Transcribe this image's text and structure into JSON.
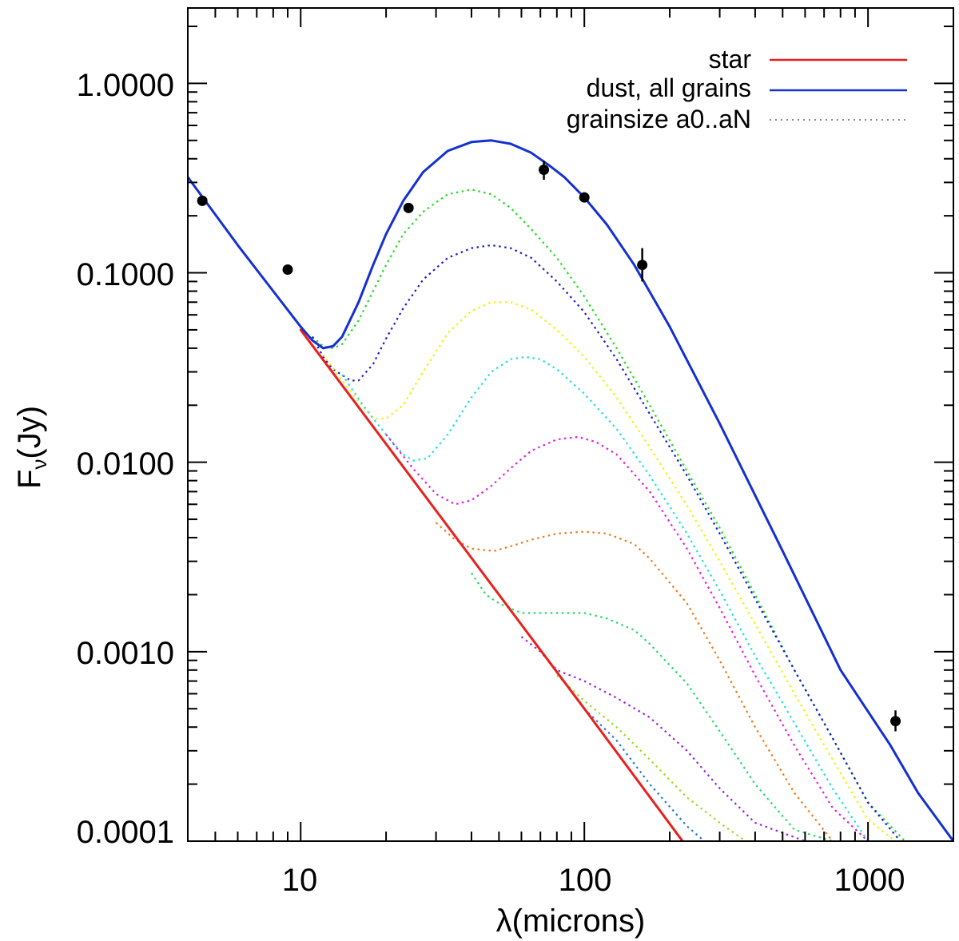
{
  "chart_data": {
    "type": "line",
    "xlabel": "λ(microns)",
    "ylabel": "F_ν(Jy)",
    "ylabel_main": "F",
    "ylabel_sub": "ν",
    "ylabel_tail": "(Jy)",
    "xscale": "log",
    "yscale": "log",
    "xlim": [
      4,
      2000
    ],
    "ylim": [
      0.0001,
      2.5
    ],
    "x_tick_labels": [
      "10",
      "100",
      "1000"
    ],
    "y_tick_labels": [
      "1.0000",
      "0.1000",
      "0.0100",
      "0.0010",
      "0.0001"
    ],
    "legend": {
      "placement": "top-right",
      "entries": [
        {
          "label": "star",
          "color": "#e8201c",
          "style": "solid"
        },
        {
          "label": "dust, all grains",
          "color": "#1530d0",
          "style": "solid"
        },
        {
          "label": "grainsize a0..aN",
          "color": "#888888",
          "style": "dotted"
        }
      ]
    },
    "series": [
      {
        "name": "star",
        "color": "#e8201c",
        "style": "solid",
        "x": [
          10,
          100,
          222
        ],
        "y": [
          0.05,
          0.0005,
          0.0001
        ]
      },
      {
        "name": "dust, all grains",
        "color": "#1530d0",
        "style": "solid",
        "x": [
          4,
          6,
          8,
          10,
          11,
          12,
          13,
          14,
          16,
          18,
          20,
          23,
          27,
          33,
          40,
          47,
          55,
          65,
          75,
          85,
          100,
          120,
          150,
          200,
          300,
          500,
          800,
          1200,
          1500,
          2000
        ],
        "y": [
          0.32,
          0.14,
          0.08,
          0.052,
          0.044,
          0.04,
          0.041,
          0.046,
          0.07,
          0.11,
          0.16,
          0.24,
          0.34,
          0.44,
          0.49,
          0.5,
          0.48,
          0.43,
          0.37,
          0.32,
          0.25,
          0.18,
          0.11,
          0.052,
          0.016,
          0.0034,
          0.0008,
          0.00032,
          0.00018,
          0.0001
        ]
      },
      {
        "name": "grainsize 1",
        "color": "#22dd22",
        "style": "dotted",
        "x": [
          11,
          12,
          13,
          14,
          16,
          18,
          20,
          23,
          27,
          33,
          40,
          47,
          55,
          65,
          80,
          100,
          130,
          170,
          230,
          300,
          400,
          550,
          750,
          1000,
          1350
        ],
        "y": [
          0.046,
          0.041,
          0.04,
          0.042,
          0.056,
          0.08,
          0.11,
          0.16,
          0.21,
          0.26,
          0.275,
          0.26,
          0.22,
          0.17,
          0.12,
          0.075,
          0.04,
          0.02,
          0.009,
          0.0045,
          0.002,
          0.0008,
          0.00035,
          0.00016,
          0.0001
        ]
      },
      {
        "name": "grainsize 2",
        "color": "#1a1ad0",
        "style": "dotted",
        "x": [
          11,
          12,
          13,
          15,
          16,
          18,
          20,
          23,
          27,
          33,
          40,
          47,
          55,
          65,
          80,
          100,
          130,
          170,
          230,
          300,
          400,
          550,
          750,
          1000,
          1300
        ],
        "y": [
          0.046,
          0.036,
          0.031,
          0.027,
          0.027,
          0.033,
          0.045,
          0.065,
          0.092,
          0.12,
          0.135,
          0.14,
          0.135,
          0.12,
          0.09,
          0.062,
          0.035,
          0.018,
          0.0085,
          0.0042,
          0.0019,
          0.0008,
          0.00035,
          0.00016,
          0.0001
        ]
      },
      {
        "name": "grainsize 3",
        "color": "#f2f20a",
        "style": "dotted",
        "x": [
          12,
          14,
          16,
          18,
          20,
          23,
          27,
          33,
          40,
          47,
          55,
          65,
          80,
          100,
          130,
          170,
          230,
          300,
          400,
          550,
          750,
          1000,
          1250
        ],
        "y": [
          0.037,
          0.027,
          0.021,
          0.017,
          0.017,
          0.02,
          0.03,
          0.048,
          0.063,
          0.07,
          0.07,
          0.064,
          0.05,
          0.036,
          0.022,
          0.012,
          0.0059,
          0.003,
          0.0014,
          0.0006,
          0.00027,
          0.00013,
          0.0001
        ]
      },
      {
        "name": "grainsize 4",
        "color": "#22e0e0",
        "style": "dotted",
        "x": [
          14,
          17,
          20,
          23,
          25,
          28,
          33,
          40,
          47,
          55,
          62,
          70,
          80,
          100,
          130,
          170,
          230,
          300,
          400,
          550,
          750,
          1000,
          1200
        ],
        "y": [
          0.029,
          0.019,
          0.014,
          0.011,
          0.0102,
          0.0105,
          0.014,
          0.022,
          0.03,
          0.035,
          0.036,
          0.035,
          0.031,
          0.023,
          0.015,
          0.0085,
          0.0042,
          0.0021,
          0.00095,
          0.00042,
          0.00019,
          0.0001,
          7.5e-05
        ]
      },
      {
        "name": "grainsize 5",
        "color": "#e020e0",
        "style": "dotted",
        "x": [
          20,
          25,
          30,
          35,
          40,
          47,
          55,
          65,
          80,
          95,
          110,
          130,
          170,
          230,
          300,
          400,
          550,
          750,
          1000,
          1150
        ],
        "y": [
          0.014,
          0.0092,
          0.0068,
          0.006,
          0.0063,
          0.0075,
          0.0093,
          0.0115,
          0.0132,
          0.0136,
          0.0128,
          0.011,
          0.007,
          0.0035,
          0.0017,
          0.00075,
          0.00032,
          0.00015,
          0.0001,
          8e-05
        ]
      },
      {
        "name": "grainsize 6",
        "color": "#f07a18",
        "style": "dotted",
        "x": [
          30,
          35,
          40,
          48,
          55,
          65,
          80,
          100,
          120,
          150,
          170,
          230,
          300,
          400,
          550,
          750,
          900
        ],
        "y": [
          0.0048,
          0.0039,
          0.0035,
          0.0034,
          0.0036,
          0.0039,
          0.0042,
          0.0043,
          0.0042,
          0.0037,
          0.0031,
          0.0018,
          0.0009,
          0.0004,
          0.00018,
          0.0001,
          8e-05
        ]
      },
      {
        "name": "grainsize 7",
        "color": "#22dd66",
        "style": "dotted",
        "x": [
          40,
          45,
          50,
          60,
          75,
          90,
          100,
          120,
          150,
          170,
          230,
          300,
          400,
          550,
          750
        ],
        "y": [
          0.0026,
          0.002,
          0.0018,
          0.0016,
          0.0016,
          0.0016,
          0.0016,
          0.0015,
          0.0013,
          0.0011,
          0.00068,
          0.00038,
          0.0002,
          0.000115,
          0.0001
        ]
      },
      {
        "name": "grainsize 8",
        "color": "#9a22dd",
        "style": "dotted",
        "x": [
          60,
          70,
          80,
          100,
          130,
          170,
          230,
          300,
          400,
          600
        ],
        "y": [
          0.0012,
          0.001,
          0.0008,
          0.0007,
          0.00057,
          0.00045,
          0.0003,
          0.00019,
          0.000125,
          0.0001
        ]
      },
      {
        "name": "grainsize 9",
        "color": "#9ae022",
        "style": "dotted",
        "x": [
          80,
          100,
          130,
          170,
          230,
          300,
          370
        ],
        "y": [
          0.00075,
          0.00055,
          0.0004,
          0.00027,
          0.00017,
          0.000125,
          0.0001
        ]
      },
      {
        "name": "grainsize 10",
        "color": "#2277dd",
        "style": "dotted",
        "x": [
          100,
          130,
          170,
          230,
          265
        ],
        "y": [
          0.0005,
          0.00034,
          0.0002,
          0.00012,
          0.0001
        ]
      }
    ],
    "observations": [
      {
        "x": 4.5,
        "y": 0.24,
        "err_lo": 0.24,
        "err_hi": 0.24
      },
      {
        "x": 9,
        "y": 0.104,
        "err_lo": 0.104,
        "err_hi": 0.104
      },
      {
        "x": 24,
        "y": 0.22,
        "err_lo": 0.22,
        "err_hi": 0.22
      },
      {
        "x": 72,
        "y": 0.35,
        "err_lo": 0.31,
        "err_hi": 0.39
      },
      {
        "x": 100,
        "y": 0.25,
        "err_lo": 0.25,
        "err_hi": 0.25
      },
      {
        "x": 160,
        "y": 0.11,
        "err_lo": 0.09,
        "err_hi": 0.135
      },
      {
        "x": 1250,
        "y": 0.00043,
        "err_lo": 0.00038,
        "err_hi": 0.00049
      }
    ]
  }
}
